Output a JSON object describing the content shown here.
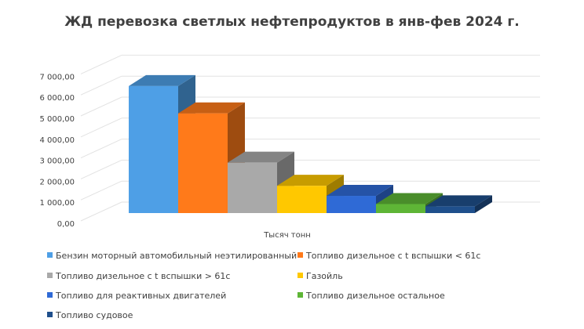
{
  "chart_data": {
    "type": "bar",
    "title": "ЖД перевозка светлых нефтепродуктов в янв-фев 2024 г.",
    "xlabel": "Тысяч тонн",
    "ylabel": "",
    "ylim": [
      0,
      7000
    ],
    "yticks": [
      "0,00",
      "1 000,00",
      "2 000,00",
      "3 000,00",
      "4 000,00",
      "5 000,00",
      "6 000,00",
      "7 000,00"
    ],
    "category": "Тысяч тонн",
    "series": [
      {
        "name": "Бензин моторный автомобильный неэтилированный",
        "value": 6050,
        "color": "#4e9fe6"
      },
      {
        "name": "Топливо дизельное с t вспышки < 61с",
        "value": 4750,
        "color": "#ff7a1a"
      },
      {
        "name": "Топливо дизельное с t вспышки > 61c",
        "value": 2400,
        "color": "#a9a9a9"
      },
      {
        "name": "Газойль",
        "value": 1300,
        "color": "#ffc800"
      },
      {
        "name": "Топливо для реактивных двигателей",
        "value": 820,
        "color": "#2f6ad6"
      },
      {
        "name": "Топливо дизельное остальное",
        "value": 430,
        "color": "#5eb536"
      },
      {
        "name": "Топливо судовое",
        "value": 320,
        "color": "#1f4f8c"
      }
    ],
    "grid": true,
    "legend_position": "bottom",
    "three_d": true
  }
}
